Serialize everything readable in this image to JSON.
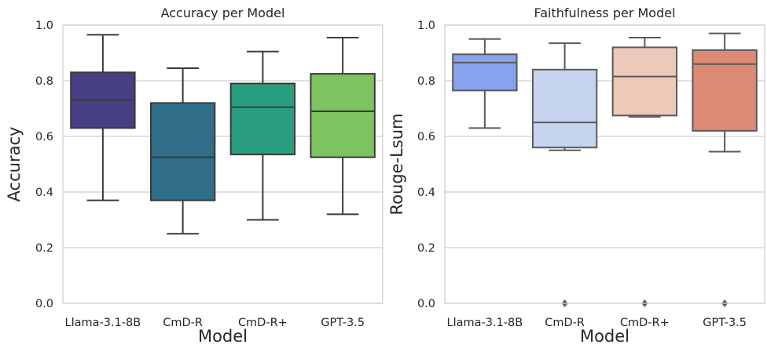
{
  "chart_data": [
    {
      "type": "box",
      "title": "Accuracy per Model",
      "xlabel": "Model",
      "ylabel": "Accuracy",
      "ylim": [
        0,
        1
      ],
      "yticks": [
        "0.0",
        "0.2",
        "0.4",
        "0.6",
        "0.8",
        "1.0"
      ],
      "categories": [
        "Llama-3.1-8B",
        "CmD-R",
        "CmD-R+",
        "GPT-3.5"
      ],
      "boxes": [
        {
          "whisker_low": 0.37,
          "q1": 0.63,
          "median": 0.73,
          "q3": 0.83,
          "whisker_high": 0.965,
          "color": "#463f83",
          "outliers": []
        },
        {
          "whisker_low": 0.25,
          "q1": 0.37,
          "median": 0.525,
          "q3": 0.72,
          "whisker_high": 0.845,
          "color": "#2f6e86",
          "outliers": []
        },
        {
          "whisker_low": 0.3,
          "q1": 0.535,
          "median": 0.705,
          "q3": 0.79,
          "whisker_high": 0.905,
          "color": "#299e7f",
          "outliers": []
        },
        {
          "whisker_low": 0.32,
          "q1": 0.525,
          "median": 0.69,
          "q3": 0.825,
          "whisker_high": 0.955,
          "color": "#7dc35f",
          "outliers": []
        }
      ],
      "grid": true,
      "line_color": "#3a3a3a"
    },
    {
      "type": "box",
      "title": "Faithfulness per Model",
      "xlabel": "Model",
      "ylabel": "Rouge-Lsum",
      "ylim": [
        0,
        1
      ],
      "yticks": [
        "0.0",
        "0.2",
        "0.4",
        "0.6",
        "0.8",
        "1.0"
      ],
      "categories": [
        "Llama-3.1-8B",
        "CmD-R",
        "CmD-R+",
        "GPT-3.5"
      ],
      "boxes": [
        {
          "whisker_low": 0.63,
          "q1": 0.765,
          "median": 0.865,
          "q3": 0.895,
          "whisker_high": 0.95,
          "color": "#86a3ee",
          "outliers": []
        },
        {
          "whisker_low": 0.55,
          "q1": 0.56,
          "median": 0.65,
          "q3": 0.84,
          "whisker_high": 0.935,
          "color": "#c6d4ef",
          "outliers": [
            0.0
          ]
        },
        {
          "whisker_low": 0.67,
          "q1": 0.675,
          "median": 0.815,
          "q3": 0.92,
          "whisker_high": 0.955,
          "color": "#ecc9b9",
          "outliers": [
            0.0
          ]
        },
        {
          "whisker_low": 0.545,
          "q1": 0.62,
          "median": 0.86,
          "q3": 0.91,
          "whisker_high": 0.97,
          "color": "#dc8a73",
          "outliers": [
            0.0
          ]
        }
      ],
      "grid": true,
      "line_color": "#5a5a5a"
    }
  ]
}
